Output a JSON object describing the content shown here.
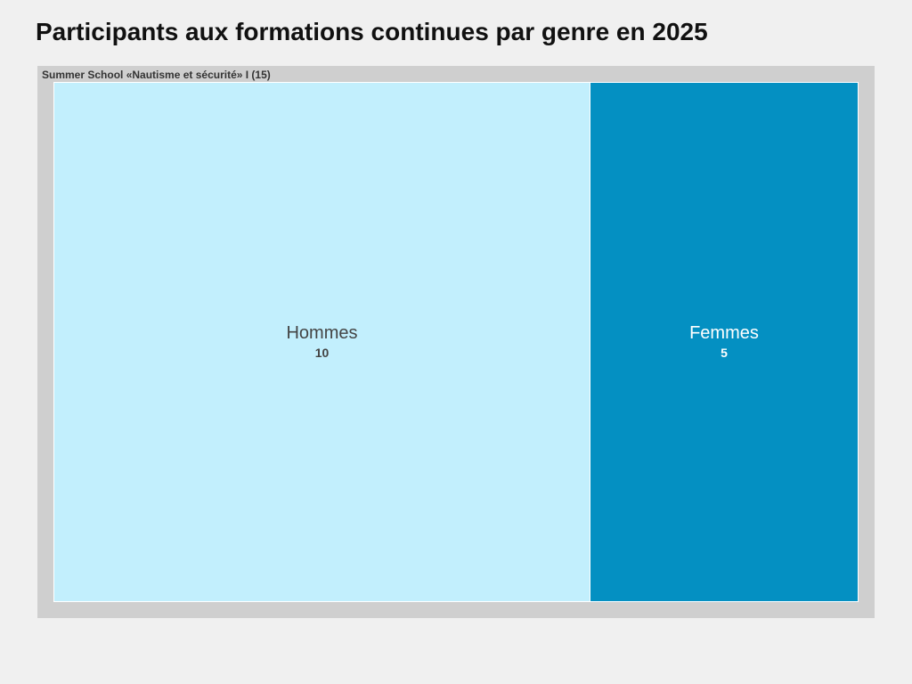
{
  "chart_data": {
    "type": "treemap",
    "title": "Participants aux formations continues par genre en 2025",
    "group": {
      "label": "Summer School «Nautisme et sécurité» I (15)",
      "total": 15
    },
    "items": [
      {
        "name": "Hommes",
        "value": 10,
        "value_label": "10",
        "color": "#c2effd",
        "text_color": "#444444"
      },
      {
        "name": "Femmes",
        "value": 5,
        "value_label": "5",
        "color": "#0490c2",
        "text_color": "#ffffff"
      }
    ]
  }
}
